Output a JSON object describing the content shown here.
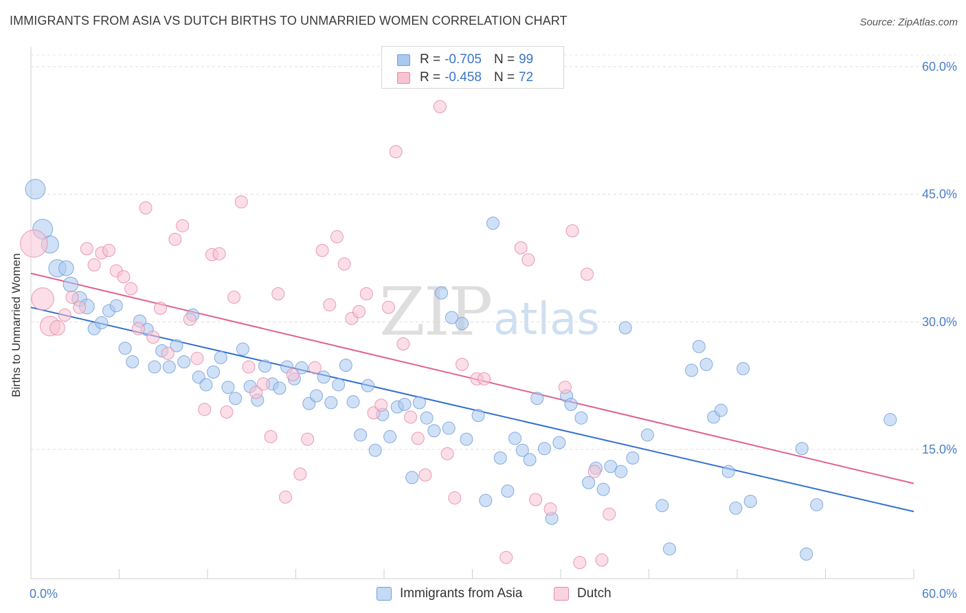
{
  "header": {
    "title": "IMMIGRANTS FROM ASIA VS DUTCH BIRTHS TO UNMARRIED WOMEN CORRELATION CHART",
    "source": "Source: ZipAtlas.com"
  },
  "watermark": {
    "zip": "ZIP",
    "atlas": "atlas"
  },
  "legend": {
    "rows": [
      {
        "r_label": "R =",
        "r_value": "-0.705",
        "n_label": "N =",
        "n_value": "99",
        "color": "#aac8f0",
        "border": "#6f9ed8"
      },
      {
        "r_label": "R =",
        "r_value": "-0.458",
        "n_label": "N =",
        "n_value": "72",
        "color": "#f7c3d3",
        "border": "#e58aa6"
      }
    ]
  },
  "bottom_legend": {
    "items": [
      {
        "label": "Immigrants from Asia",
        "color": "#c5d9f4",
        "border": "#6f9ed8"
      },
      {
        "label": "Dutch",
        "color": "#f9d3df",
        "border": "#e58aa6"
      }
    ]
  },
  "chart_data": {
    "type": "scatter",
    "title": "IMMIGRANTS FROM ASIA VS DUTCH BIRTHS TO UNMARRIED WOMEN CORRELATION CHART",
    "xlabel": "",
    "ylabel": "Births to Unmarried Women",
    "xlim": [
      0,
      60
    ],
    "ylim": [
      0,
      63
    ],
    "x_tick_labels": [
      "0.0%",
      "60.0%"
    ],
    "y_ticks": [
      15,
      30,
      45,
      60
    ],
    "y_tick_labels": [
      "15.0%",
      "30.0%",
      "45.0%",
      "60.0%"
    ],
    "grid": true,
    "series": [
      {
        "name": "Immigrants from Asia",
        "color": "#6f9ed8",
        "fill": "#aac8f0",
        "line_color": "#2f6fce",
        "trend": {
          "x0": 0,
          "y0": 31.7,
          "x1": 60,
          "y1": 7.7
        },
        "points": [
          [
            0.3,
            45.6,
            1.6
          ],
          [
            0.8,
            40.9,
            1.6
          ],
          [
            1.3,
            39.1,
            1.4
          ],
          [
            1.8,
            36.3,
            1.4
          ],
          [
            2.4,
            36.3,
            1.2
          ],
          [
            2.7,
            34.4,
            1.2
          ],
          [
            3.3,
            32.7,
            1.2
          ],
          [
            3.8,
            31.8,
            1.2
          ],
          [
            4.3,
            29.2,
            1
          ],
          [
            4.8,
            29.9,
            1
          ],
          [
            5.3,
            31.3,
            1
          ],
          [
            5.8,
            31.9,
            1
          ],
          [
            6.4,
            26.9,
            1
          ],
          [
            6.9,
            25.3,
            1
          ],
          [
            7.4,
            30.1,
            1
          ],
          [
            7.9,
            29.1,
            1
          ],
          [
            8.4,
            24.7,
            1
          ],
          [
            8.9,
            26.6,
            1
          ],
          [
            9.4,
            24.7,
            1
          ],
          [
            9.9,
            27.2,
            1
          ],
          [
            10.4,
            25.3,
            1
          ],
          [
            11.0,
            30.8,
            1
          ],
          [
            11.4,
            23.5,
            1
          ],
          [
            11.9,
            22.6,
            1
          ],
          [
            12.4,
            24.1,
            1
          ],
          [
            12.9,
            25.8,
            1
          ],
          [
            13.4,
            22.3,
            1
          ],
          [
            13.9,
            21.0,
            1
          ],
          [
            14.4,
            26.8,
            1
          ],
          [
            14.9,
            22.4,
            1
          ],
          [
            15.4,
            20.8,
            1
          ],
          [
            15.9,
            24.8,
            1
          ],
          [
            16.4,
            22.7,
            1
          ],
          [
            16.9,
            22.2,
            1
          ],
          [
            17.4,
            24.7,
            1
          ],
          [
            17.9,
            23.3,
            1
          ],
          [
            18.4,
            24.6,
            1
          ],
          [
            18.9,
            20.4,
            1
          ],
          [
            19.4,
            21.3,
            1
          ],
          [
            19.9,
            23.5,
            1
          ],
          [
            20.4,
            20.5,
            1
          ],
          [
            20.9,
            22.6,
            1
          ],
          [
            21.4,
            24.9,
            1
          ],
          [
            21.9,
            20.6,
            1
          ],
          [
            22.4,
            16.7,
            1
          ],
          [
            22.9,
            22.5,
            1
          ],
          [
            23.4,
            14.9,
            1
          ],
          [
            23.9,
            19.1,
            1
          ],
          [
            24.4,
            16.5,
            1
          ],
          [
            24.9,
            20.0,
            1
          ],
          [
            25.4,
            20.3,
            1
          ],
          [
            25.9,
            11.7,
            1
          ],
          [
            26.4,
            20.5,
            1
          ],
          [
            26.9,
            18.7,
            1
          ],
          [
            27.4,
            17.2,
            1
          ],
          [
            27.9,
            33.4,
            1
          ],
          [
            28.4,
            17.5,
            1
          ],
          [
            28.6,
            30.5,
            1
          ],
          [
            29.3,
            29.8,
            1
          ],
          [
            29.6,
            16.2,
            1
          ],
          [
            30.4,
            19.0,
            1
          ],
          [
            30.9,
            9.0,
            1
          ],
          [
            31.4,
            41.6,
            1
          ],
          [
            31.9,
            14.0,
            1
          ],
          [
            32.4,
            10.1,
            1
          ],
          [
            32.9,
            16.3,
            1
          ],
          [
            33.4,
            14.9,
            1
          ],
          [
            33.9,
            13.8,
            1
          ],
          [
            34.4,
            21.0,
            1
          ],
          [
            34.9,
            15.1,
            1
          ],
          [
            35.4,
            6.9,
            1
          ],
          [
            35.9,
            15.8,
            1
          ],
          [
            36.4,
            21.3,
            1
          ],
          [
            36.7,
            20.3,
            1
          ],
          [
            37.4,
            18.7,
            1
          ],
          [
            37.9,
            11.1,
            1
          ],
          [
            38.4,
            12.8,
            1
          ],
          [
            38.9,
            10.3,
            1
          ],
          [
            39.4,
            13.0,
            1
          ],
          [
            40.1,
            12.4,
            1
          ],
          [
            40.4,
            29.3,
            1
          ],
          [
            40.9,
            14.0,
            1
          ],
          [
            41.9,
            16.7,
            1
          ],
          [
            42.9,
            8.4,
            1
          ],
          [
            43.4,
            3.3,
            1
          ],
          [
            44.9,
            24.3,
            1
          ],
          [
            45.4,
            27.1,
            1
          ],
          [
            45.9,
            25.0,
            1
          ],
          [
            46.4,
            18.8,
            1
          ],
          [
            46.9,
            19.6,
            1
          ],
          [
            47.4,
            12.4,
            1
          ],
          [
            47.9,
            8.1,
            1
          ],
          [
            48.4,
            24.5,
            1
          ],
          [
            48.9,
            8.9,
            1
          ],
          [
            52.4,
            15.1,
            1
          ],
          [
            52.7,
            2.7,
            1
          ],
          [
            53.4,
            8.5,
            1
          ],
          [
            58.4,
            18.5,
            1
          ]
        ]
      },
      {
        "name": "Dutch",
        "color": "#e58aa6",
        "fill": "#f7c3d3",
        "line_color": "#e0608b",
        "trend": {
          "x0": 0,
          "y0": 35.7,
          "x1": 60,
          "y1": 11.0
        },
        "points": [
          [
            0.2,
            39.2,
            2.2
          ],
          [
            0.8,
            32.7,
            1.8
          ],
          [
            1.3,
            29.5,
            1.6
          ],
          [
            1.8,
            29.3,
            1.2
          ],
          [
            2.3,
            30.8,
            1
          ],
          [
            2.8,
            32.9,
            1
          ],
          [
            3.3,
            31.7,
            1
          ],
          [
            3.8,
            38.6,
            1
          ],
          [
            4.3,
            36.7,
            1
          ],
          [
            4.8,
            38.1,
            1
          ],
          [
            5.3,
            38.4,
            1
          ],
          [
            5.8,
            36.0,
            1
          ],
          [
            6.3,
            35.3,
            1
          ],
          [
            6.8,
            33.9,
            1
          ],
          [
            7.3,
            29.2,
            1
          ],
          [
            7.8,
            43.4,
            1
          ],
          [
            8.3,
            28.2,
            1
          ],
          [
            8.8,
            31.6,
            1
          ],
          [
            9.3,
            26.3,
            1
          ],
          [
            9.8,
            39.7,
            1
          ],
          [
            10.3,
            41.3,
            1
          ],
          [
            10.8,
            30.3,
            1
          ],
          [
            11.3,
            25.7,
            1
          ],
          [
            11.8,
            19.7,
            1
          ],
          [
            12.3,
            37.9,
            1
          ],
          [
            12.8,
            38.0,
            1
          ],
          [
            13.3,
            19.4,
            1
          ],
          [
            13.8,
            32.9,
            1
          ],
          [
            14.3,
            44.1,
            1
          ],
          [
            14.8,
            24.7,
            1
          ],
          [
            15.3,
            21.7,
            1
          ],
          [
            15.8,
            22.7,
            1
          ],
          [
            16.3,
            16.5,
            1
          ],
          [
            16.8,
            33.3,
            1
          ],
          [
            17.3,
            9.4,
            1
          ],
          [
            17.8,
            23.8,
            1
          ],
          [
            18.3,
            12.1,
            1
          ],
          [
            18.8,
            16.2,
            1
          ],
          [
            19.3,
            24.6,
            1
          ],
          [
            19.8,
            38.4,
            1
          ],
          [
            20.3,
            32.0,
            1
          ],
          [
            20.8,
            40.0,
            1
          ],
          [
            21.3,
            36.8,
            1
          ],
          [
            21.8,
            30.4,
            1
          ],
          [
            22.3,
            31.2,
            1
          ],
          [
            22.8,
            33.3,
            1
          ],
          [
            23.3,
            19.3,
            1
          ],
          [
            23.8,
            20.2,
            1
          ],
          [
            24.3,
            31.7,
            1
          ],
          [
            24.8,
            50.0,
            1
          ],
          [
            25.3,
            27.4,
            1
          ],
          [
            25.8,
            18.8,
            1
          ],
          [
            26.3,
            16.3,
            1
          ],
          [
            26.8,
            12.0,
            1
          ],
          [
            27.8,
            55.3,
            1
          ],
          [
            28.3,
            14.5,
            1
          ],
          [
            28.8,
            9.3,
            1
          ],
          [
            29.3,
            25.0,
            1
          ],
          [
            30.3,
            23.3,
            1
          ],
          [
            30.8,
            23.3,
            1
          ],
          [
            32.3,
            2.3,
            1
          ],
          [
            33.3,
            38.7,
            1
          ],
          [
            33.8,
            37.3,
            1
          ],
          [
            34.3,
            9.1,
            1
          ],
          [
            35.3,
            8.0,
            1
          ],
          [
            36.3,
            22.3,
            1
          ],
          [
            36.8,
            40.7,
            1
          ],
          [
            37.3,
            1.7,
            1
          ],
          [
            37.8,
            35.6,
            1
          ],
          [
            38.3,
            12.4,
            1
          ],
          [
            38.8,
            2.0,
            1
          ],
          [
            39.3,
            7.4,
            1
          ]
        ]
      }
    ]
  }
}
